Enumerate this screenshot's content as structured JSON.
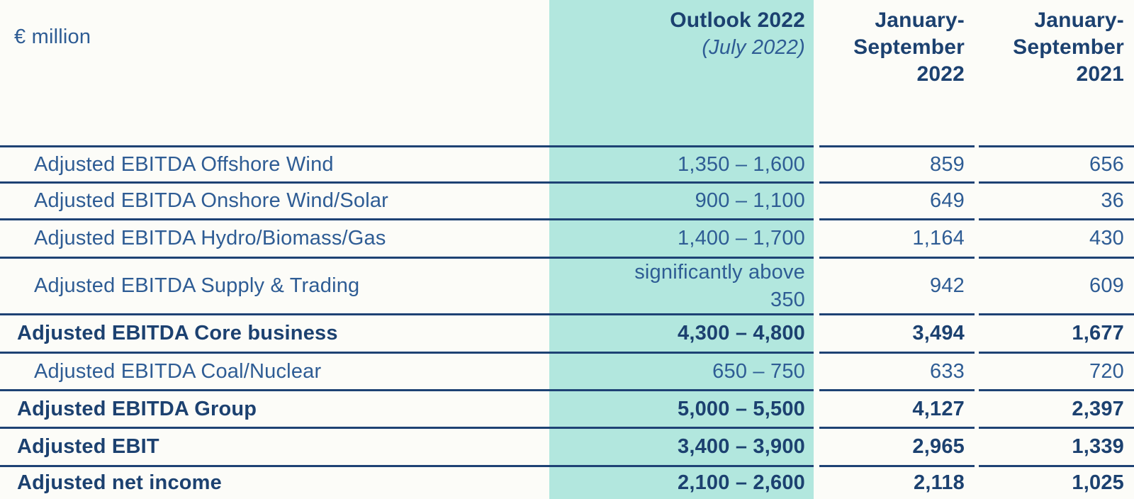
{
  "table": {
    "unit_label": "€ million",
    "header": {
      "outlook_title": "Outlook 2022",
      "outlook_subtitle": "(July 2022)",
      "col_jan_sep_2022": "January-\nSeptember\n2022",
      "col_jan_sep_2021": "January-\nSeptember\n2021"
    },
    "rows": [
      {
        "label": "Adjusted EBITDA Offshore Wind",
        "outlook": "1,350 – 1,600",
        "jan_sep_2022": "859",
        "jan_sep_2021": "656",
        "bold": false,
        "indent": true
      },
      {
        "label": "Adjusted EBITDA Onshore Wind/Solar",
        "outlook": "900 – 1,100",
        "jan_sep_2022": "649",
        "jan_sep_2021": "36",
        "bold": false,
        "indent": true
      },
      {
        "label": "Adjusted EBITDA Hydro/Biomass/Gas",
        "outlook": "1,400 – 1,700",
        "jan_sep_2022": "1,164",
        "jan_sep_2021": "430",
        "bold": false,
        "indent": true
      },
      {
        "label": "Adjusted EBITDA Supply & Trading",
        "outlook": "significantly above\n350",
        "jan_sep_2022": "942",
        "jan_sep_2021": "609",
        "bold": false,
        "indent": true
      },
      {
        "label": "Adjusted EBITDA Core business",
        "outlook": "4,300 – 4,800",
        "jan_sep_2022": "3,494",
        "jan_sep_2021": "1,677",
        "bold": true,
        "indent": false
      },
      {
        "label": "Adjusted EBITDA Coal/Nuclear",
        "outlook": "650 – 750",
        "jan_sep_2022": "633",
        "jan_sep_2021": "720",
        "bold": false,
        "indent": true
      },
      {
        "label": "Adjusted EBITDA Group",
        "outlook": "5,000 – 5,500",
        "jan_sep_2022": "4,127",
        "jan_sep_2021": "2,397",
        "bold": true,
        "indent": false
      },
      {
        "label": "Adjusted EBIT",
        "outlook": "3,400 – 3,900",
        "jan_sep_2022": "2,965",
        "jan_sep_2021": "1,339",
        "bold": true,
        "indent": false
      },
      {
        "label": "Adjusted net income",
        "outlook": "2,100 – 2,600",
        "jan_sep_2022": "2,118",
        "jan_sep_2021": "1,025",
        "bold": true,
        "indent": false
      }
    ],
    "colors": {
      "highlight_column": "#b2e7de",
      "row_line": "#1e4274",
      "text_regular": "#2e5c94",
      "text_bold": "#1c4170",
      "background": "#fcfcf8"
    }
  },
  "chart_data": {
    "type": "table",
    "title": "Outlook 2022 vs January-September results",
    "unit": "€ million",
    "columns": [
      "€ million",
      "Outlook 2022 (July 2022)",
      "January-September 2022",
      "January-September 2021"
    ],
    "rows": [
      [
        "Adjusted EBITDA Offshore Wind",
        "1,350 – 1,600",
        859,
        656
      ],
      [
        "Adjusted EBITDA Onshore Wind/Solar",
        "900 – 1,100",
        649,
        36
      ],
      [
        "Adjusted EBITDA Hydro/Biomass/Gas",
        "1,400 – 1,700",
        1164,
        430
      ],
      [
        "Adjusted EBITDA Supply & Trading",
        "significantly above 350",
        942,
        609
      ],
      [
        "Adjusted EBITDA Core business",
        "4,300 – 4,800",
        3494,
        1677
      ],
      [
        "Adjusted EBITDA Coal/Nuclear",
        "650 – 750",
        633,
        720
      ],
      [
        "Adjusted EBITDA Group",
        "5,000 – 5,500",
        4127,
        2397
      ],
      [
        "Adjusted EBIT",
        "3,400 – 3,900",
        2965,
        1339
      ],
      [
        "Adjusted net income",
        "2,100 – 2,600",
        2118,
        1025
      ]
    ]
  }
}
